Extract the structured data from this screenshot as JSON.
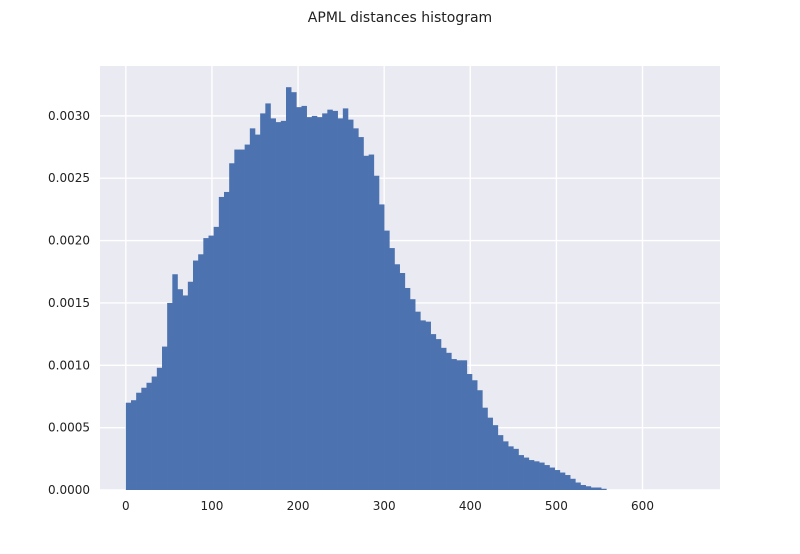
{
  "chart_data": {
    "type": "bar",
    "title": "APML distances histogram",
    "xlabel": "",
    "ylabel": "",
    "xlim": [
      -30,
      690
    ],
    "ylim": [
      0,
      0.0034
    ],
    "x_ticks": [
      0,
      100,
      200,
      300,
      400,
      500,
      600
    ],
    "x_tick_labels": [
      "0",
      "100",
      "200",
      "300",
      "400",
      "500",
      "600"
    ],
    "y_ticks": [
      0.0,
      0.0005,
      0.001,
      0.0015,
      0.002,
      0.0025,
      0.003
    ],
    "y_tick_labels": [
      "0.0000",
      "0.0005",
      "0.0010",
      "0.0015",
      "0.0020",
      "0.0025",
      "0.0030"
    ],
    "bin_start": 0,
    "bin_width": 6,
    "values": [
      0.0007,
      0.00072,
      0.00078,
      0.00082,
      0.00086,
      0.00091,
      0.00098,
      0.00115,
      0.0015,
      0.00173,
      0.00161,
      0.00156,
      0.00167,
      0.00184,
      0.00189,
      0.00202,
      0.00204,
      0.00211,
      0.00235,
      0.00239,
      0.00262,
      0.00273,
      0.00273,
      0.00277,
      0.0029,
      0.00285,
      0.00302,
      0.0031,
      0.00298,
      0.00295,
      0.00296,
      0.00323,
      0.00319,
      0.00307,
      0.00308,
      0.00299,
      0.003,
      0.00299,
      0.00302,
      0.00305,
      0.00304,
      0.00298,
      0.00306,
      0.00297,
      0.0029,
      0.00283,
      0.00268,
      0.00269,
      0.00252,
      0.00229,
      0.00208,
      0.00194,
      0.00181,
      0.00174,
      0.00162,
      0.00153,
      0.00143,
      0.00136,
      0.00135,
      0.00125,
      0.00121,
      0.00114,
      0.0011,
      0.00105,
      0.00104,
      0.00104,
      0.00093,
      0.00088,
      0.0008,
      0.00066,
      0.00058,
      0.00052,
      0.00044,
      0.00039,
      0.00035,
      0.00033,
      0.00028,
      0.00026,
      0.00024,
      0.00023,
      0.00022,
      0.0002,
      0.00018,
      0.00016,
      0.00014,
      0.00012,
      9e-05,
      6e-05,
      4e-05,
      3e-05,
      2e-05,
      2e-05,
      1e-05
    ],
    "bar_color": "#4c72b0",
    "background_color": "#eaeaf2",
    "grid": true,
    "grid_color": "#ffffff"
  }
}
